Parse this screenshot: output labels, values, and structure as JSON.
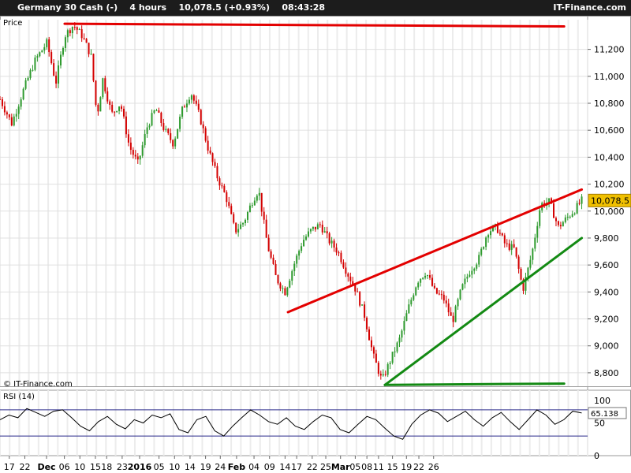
{
  "header": {
    "instrument": "Germany 30 Cash (-)",
    "timeframe": "4 hours",
    "price_change": "10,078.5 (+0.93%)",
    "time": "08:43:28",
    "brand": "IT-Finance.com"
  },
  "watermark": "© IT-Finance.com",
  "colors": {
    "up": "#2e9a2e",
    "down": "#d40000",
    "resistance": "#e30000",
    "support": "#138a13",
    "rsi_line": "#000000",
    "rsi_band": "#2a2a8a",
    "price_label_bg": "#f0c000"
  },
  "chart_data": [
    {
      "type": "candlestick",
      "title": "Price",
      "y_ticks": [
        8800,
        9000,
        9200,
        9400,
        9600,
        9800,
        10000,
        10200,
        10400,
        10600,
        10800,
        11000,
        11200
      ],
      "y_tick_labels": [
        "8,800",
        "9,000",
        "9,200",
        "9,400",
        "9,600",
        "9,800",
        "10,000",
        "10,200",
        "10,400",
        "10,600",
        "10,800",
        "11,000",
        "11,200"
      ],
      "ylim": [
        8700,
        11420
      ],
      "last_price": 10078.5,
      "last_price_label": "10,078.5",
      "x_tick_labels": [
        "17",
        "22",
        "Dec",
        "06",
        "10",
        "15",
        "18",
        "23",
        "2016",
        "05",
        "10",
        "14",
        "19",
        "24",
        "Feb",
        "04",
        "09",
        "14",
        "17",
        "22",
        "25",
        "Mar",
        "05",
        "08",
        "11",
        "15",
        "19",
        "22",
        "26"
      ],
      "x_tick_pos": [
        0.024,
        0.064,
        0.12,
        0.166,
        0.206,
        0.246,
        0.275,
        0.315,
        0.36,
        0.41,
        0.45,
        0.49,
        0.53,
        0.568,
        0.61,
        0.655,
        0.695,
        0.735,
        0.765,
        0.805,
        0.84,
        0.878,
        0.916,
        0.946,
        0.976,
        1.012,
        1.048,
        1.08,
        1.118
      ],
      "price_path": [
        [
          0.0,
          10830
        ],
        [
          0.02,
          10650
        ],
        [
          0.04,
          10900
        ],
        [
          0.06,
          11120
        ],
        [
          0.08,
          11250
        ],
        [
          0.095,
          10950
        ],
        [
          0.11,
          11300
        ],
        [
          0.125,
          11380
        ],
        [
          0.14,
          11300
        ],
        [
          0.155,
          11150
        ],
        [
          0.165,
          10700
        ],
        [
          0.175,
          10980
        ],
        [
          0.19,
          10720
        ],
        [
          0.205,
          10800
        ],
        [
          0.22,
          10480
        ],
        [
          0.235,
          10350
        ],
        [
          0.25,
          10620
        ],
        [
          0.265,
          10760
        ],
        [
          0.28,
          10600
        ],
        [
          0.295,
          10500
        ],
        [
          0.31,
          10750
        ],
        [
          0.325,
          10880
        ],
        [
          0.34,
          10700
        ],
        [
          0.355,
          10450
        ],
        [
          0.37,
          10250
        ],
        [
          0.385,
          10100
        ],
        [
          0.4,
          9850
        ],
        [
          0.415,
          9920
        ],
        [
          0.43,
          10080
        ],
        [
          0.44,
          10160
        ],
        [
          0.455,
          9750
        ],
        [
          0.47,
          9500
        ],
        [
          0.485,
          9400
        ],
        [
          0.5,
          9600
        ],
        [
          0.515,
          9780
        ],
        [
          0.53,
          9860
        ],
        [
          0.545,
          9900
        ],
        [
          0.56,
          9780
        ],
        [
          0.575,
          9700
        ],
        [
          0.59,
          9550
        ],
        [
          0.605,
          9420
        ],
        [
          0.62,
          9230
        ],
        [
          0.635,
          8930
        ],
        [
          0.65,
          8740
        ],
        [
          0.665,
          8900
        ],
        [
          0.68,
          9050
        ],
        [
          0.695,
          9280
        ],
        [
          0.71,
          9480
        ],
        [
          0.725,
          9550
        ],
        [
          0.74,
          9400
        ],
        [
          0.755,
          9350
        ],
        [
          0.77,
          9180
        ],
        [
          0.785,
          9420
        ],
        [
          0.8,
          9560
        ],
        [
          0.815,
          9650
        ],
        [
          0.83,
          9850
        ],
        [
          0.845,
          9880
        ],
        [
          0.86,
          9750
        ],
        [
          0.875,
          9720
        ],
        [
          0.89,
          9420
        ],
        [
          0.905,
          9680
        ],
        [
          0.92,
          10050
        ],
        [
          0.935,
          10070
        ],
        [
          0.95,
          9880
        ],
        [
          0.965,
          9950
        ],
        [
          0.98,
          10020
        ],
        [
          0.99,
          10078.5
        ]
      ],
      "trendlines": [
        {
          "kind": "resistance",
          "x1": 0.11,
          "y1": 11390,
          "x2": 0.96,
          "y2": 11370
        },
        {
          "kind": "resistance",
          "x1": 0.49,
          "y1": 9250,
          "x2": 0.99,
          "y2": 10160
        },
        {
          "kind": "support",
          "x1": 0.655,
          "y1": 8710,
          "x2": 0.99,
          "y2": 9800
        },
        {
          "kind": "support",
          "x1": 0.655,
          "y1": 8710,
          "x2": 0.96,
          "y2": 8720
        }
      ]
    },
    {
      "type": "line",
      "title": "RSI (14)",
      "ylim": [
        0,
        100
      ],
      "y_tick_labels": [
        "0",
        "50",
        "100"
      ],
      "band_levels": [
        70,
        30
      ],
      "last_value": 65.138,
      "last_value_label": "65.138",
      "series": [
        {
          "values": [
            55,
            62,
            58,
            72,
            66,
            60,
            68,
            70,
            58,
            45,
            38,
            52,
            60,
            48,
            41,
            55,
            50,
            62,
            58,
            64,
            40,
            35,
            55,
            60,
            38,
            30,
            45,
            58,
            70,
            62,
            52,
            48,
            58,
            45,
            40,
            52,
            62,
            58,
            40,
            35,
            48,
            60,
            55,
            42,
            30,
            25,
            48,
            62,
            70,
            65,
            52,
            60,
            68,
            55,
            45,
            58,
            66,
            52,
            40,
            55,
            70,
            62,
            48,
            55,
            68,
            65.138
          ]
        }
      ]
    }
  ]
}
